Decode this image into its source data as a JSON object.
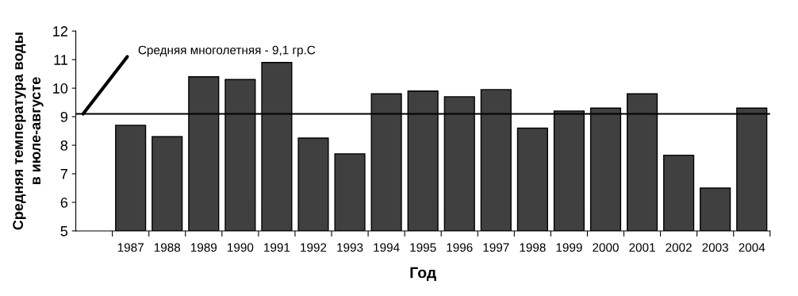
{
  "chart_data": {
    "type": "bar",
    "categories": [
      null,
      "1987",
      "1988",
      "1989",
      "1990",
      "1991",
      "1992",
      "1993",
      "1994",
      "1995",
      "1996",
      "1997",
      "1998",
      "1999",
      "2000",
      "2001",
      "2002",
      "2003",
      "2004"
    ],
    "values": [
      null,
      8.7,
      8.3,
      10.4,
      10.3,
      10.9,
      8.25,
      7.7,
      9.8,
      9.9,
      9.7,
      9.95,
      8.6,
      9.2,
      9.3,
      9.8,
      7.65,
      6.5,
      9.3
    ],
    "color": "#404040",
    "xlabel": "Год",
    "ylabel": "Средняя температура воды\nв июле-августе",
    "ylim": [
      5,
      12
    ],
    "yticks": [
      5,
      6,
      7,
      8,
      9,
      10,
      11,
      12
    ],
    "ref_lines": [
      {
        "axis": "y",
        "value": 9.1,
        "label": "Средняя многолетняя - 9,1 гр.С",
        "color": "#000000"
      }
    ],
    "grid": false,
    "legend": false
  }
}
